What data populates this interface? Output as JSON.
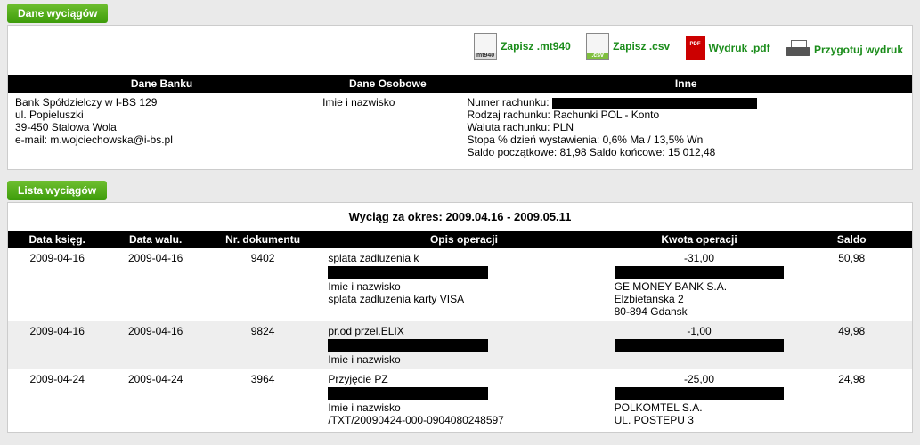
{
  "sections": {
    "data_header": "Dane wyciągów",
    "list_header": "Lista wyciągów"
  },
  "toolbar": {
    "save_mt940": "Zapisz .mt940",
    "save_csv": "Zapisz .csv",
    "print_pdf": "Wydruk .pdf",
    "prepare_print": "Przygotuj wydruk"
  },
  "info": {
    "headers": {
      "bank": "Dane Banku",
      "personal": "Dane Osobowe",
      "other": "Inne"
    },
    "bank": {
      "name": "Bank Spółdzielczy w I-BS 129",
      "street": "ul. Popieluszki",
      "city": "39-450 Stalowa Wola",
      "email": "e-mail: m.wojciechowska@i-bs.pl"
    },
    "personal": {
      "line1": "Imie i nazwisko"
    },
    "other": {
      "acct_no_label": "Numer rachunku:",
      "acct_type": "Rodzaj rachunku: Rachunki POL - Konto",
      "currency": "Waluta rachunku: PLN",
      "rate": "Stopa % dzień wystawienia: 0,6% Ma / 13,5% Wn",
      "balances": "Saldo początkowe: 81,98  Saldo końcowe: 15 012,48"
    }
  },
  "period": "Wyciąg za okres: 2009.04.16 - 2009.05.11",
  "columns": {
    "post_date": "Data księg.",
    "value_date": "Data walu.",
    "doc_no": "Nr. dokumentu",
    "desc": "Opis operacji",
    "amount": "Kwota operacji",
    "balance": "Saldo"
  },
  "rows": [
    {
      "post_date": "2009-04-16",
      "value_date": "2009-04-16",
      "doc_no": "9402",
      "desc1": "splata zadluzenia k",
      "desc2": "Imie i nazwisko",
      "desc3": "splata zadluzenia karty VISA",
      "counter1": "GE MONEY BANK S.A.",
      "counter2": "Elzbietanska 2",
      "counter3": "80-894 Gdansk",
      "amount": "-31,00",
      "balance": "50,98"
    },
    {
      "post_date": "2009-04-16",
      "value_date": "2009-04-16",
      "doc_no": "9824",
      "desc1": "pr.od przel.ELIX",
      "desc2": "Imie i nazwisko",
      "desc3": "",
      "counter1": "",
      "counter2": "",
      "counter3": "",
      "amount": "-1,00",
      "balance": "49,98"
    },
    {
      "post_date": "2009-04-24",
      "value_date": "2009-04-24",
      "doc_no": "3964",
      "desc1": "Przyjęcie PZ",
      "desc2": "Imie i nazwisko",
      "desc3": "/TXT/20090424-000-0904080248597",
      "counter1": "POLKOMTEL S.A.",
      "counter2": "UL. POSTEPU 3",
      "counter3": "",
      "amount": "-25,00",
      "balance": "24,98"
    }
  ]
}
